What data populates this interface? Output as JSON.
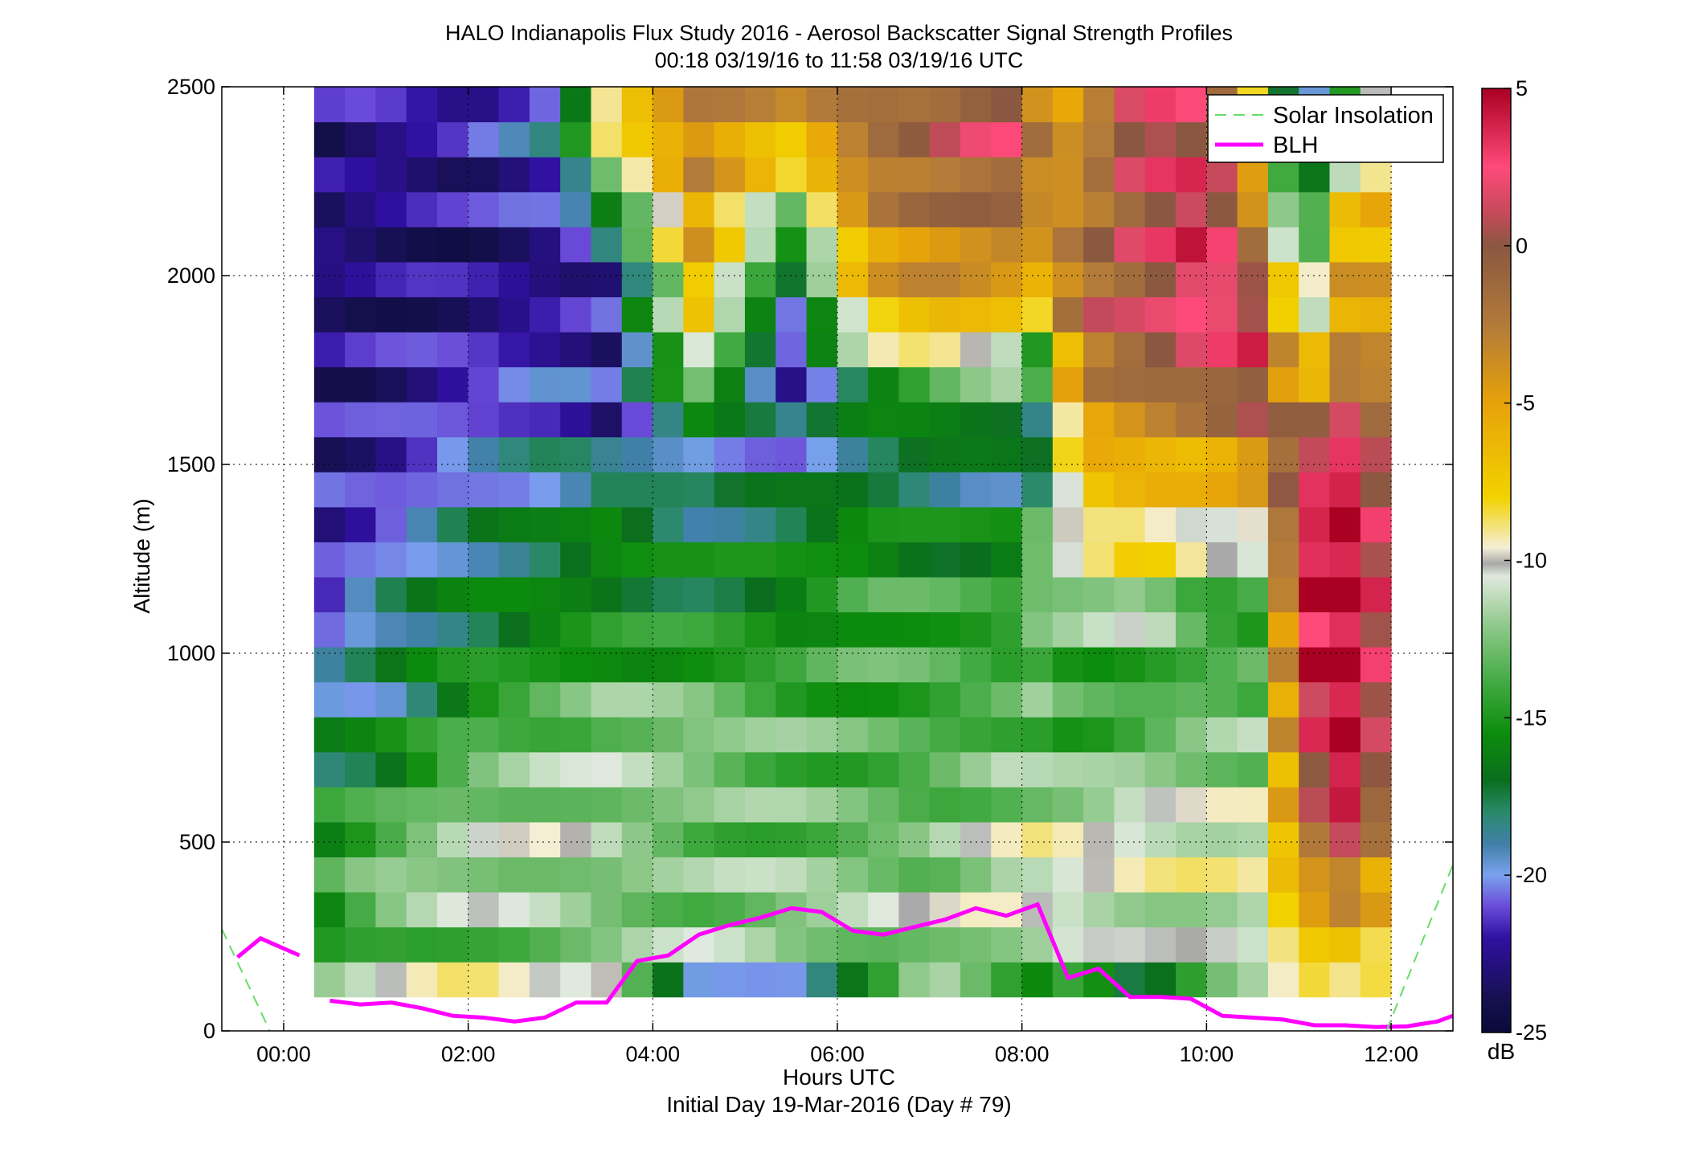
{
  "chart_data": {
    "type": "heatmap",
    "title": "HALO Indianapolis Flux Study 2016 - Aerosol Backscatter Signal Strength Profiles",
    "subtitle": "00:18 03/19/16 to 11:58 03/19/16  UTC",
    "xlabel": "Hours UTC",
    "xlabel2": "Initial Day 19-Mar-2016 (Day # 79)",
    "ylabel": "Altitude (m)",
    "xlim": [
      -0.67,
      12.67
    ],
    "ylim": [
      0,
      2500
    ],
    "grid": true,
    "x_ticks": [
      {
        "value": 0,
        "label": "00:00"
      },
      {
        "value": 2,
        "label": "02:00"
      },
      {
        "value": 4,
        "label": "04:00"
      },
      {
        "value": 6,
        "label": "06:00"
      },
      {
        "value": 8,
        "label": "08:00"
      },
      {
        "value": 10,
        "label": "10:00"
      },
      {
        "value": 12,
        "label": "12:00"
      }
    ],
    "y_ticks": [
      {
        "value": 0,
        "label": "0"
      },
      {
        "value": 500,
        "label": "500"
      },
      {
        "value": 1000,
        "label": "1000"
      },
      {
        "value": 1500,
        "label": "1500"
      },
      {
        "value": 2000,
        "label": "2000"
      },
      {
        "value": 2500,
        "label": "2500"
      }
    ],
    "heatmap": {
      "x_start": 0.33,
      "x_end": 12.0,
      "columns": 35,
      "y_start": 90,
      "y_end": 2500,
      "rows": 26,
      "note_values": "signal strength in dB, interpolated from the profile shape",
      "profiles": [
        {
          "t": 0.33,
          "pts": [
            [
              90,
              -9
            ],
            [
              200,
              -16
            ],
            [
              500,
              -15
            ],
            [
              700,
              -17
            ],
            [
              900,
              -19
            ],
            [
              1000,
              -20
            ],
            [
              1100,
              -22
            ],
            [
              1400,
              -22
            ],
            [
              1800,
              -23
            ],
            [
              2500,
              -23
            ]
          ]
        },
        {
          "t": 1.0,
          "pts": [
            [
              90,
              -10
            ],
            [
              200,
              -14
            ],
            [
              400,
              -12
            ],
            [
              700,
              -16
            ],
            [
              900,
              -19
            ],
            [
              1100,
              -18
            ],
            [
              1300,
              -21
            ],
            [
              1500,
              -22
            ],
            [
              2000,
              -23
            ],
            [
              2500,
              -22
            ]
          ]
        },
        {
          "t": 2.0,
          "pts": [
            [
              90,
              -8
            ],
            [
              200,
              -13
            ],
            [
              400,
              -11
            ],
            [
              700,
              -13
            ],
            [
              900,
              -15
            ],
            [
              1100,
              -17
            ],
            [
              1300,
              -18
            ],
            [
              1500,
              -20
            ],
            [
              2000,
              -23
            ],
            [
              2500,
              -22
            ]
          ]
        },
        {
          "t": 3.0,
          "pts": [
            [
              90,
              -9
            ],
            [
              200,
              -13
            ],
            [
              500,
              -11
            ],
            [
              800,
              -13
            ],
            [
              1100,
              -16
            ],
            [
              1300,
              -17
            ],
            [
              1500,
              -19
            ],
            [
              2000,
              -23
            ],
            [
              2500,
              -18
            ]
          ]
        },
        {
          "t": 3.5,
          "pts": [
            [
              90,
              -6
            ],
            [
              200,
              -13
            ],
            [
              500,
              -12
            ],
            [
              800,
              -12
            ],
            [
              1100,
              -16
            ],
            [
              1400,
              -16
            ],
            [
              1600,
              -22
            ],
            [
              2000,
              -22
            ],
            [
              2400,
              -8
            ]
          ]
        },
        {
          "t": 4.5,
          "pts": [
            [
              90,
              -23
            ],
            [
              200,
              -12
            ],
            [
              500,
              -13
            ],
            [
              800,
              -12
            ],
            [
              1100,
              -16
            ],
            [
              1300,
              -17
            ],
            [
              1500,
              -20
            ],
            [
              1800,
              -10
            ],
            [
              2000,
              -6
            ],
            [
              2400,
              -3
            ]
          ]
        },
        {
          "t": 5.5,
          "pts": [
            [
              90,
              -24
            ],
            [
              250,
              -11
            ],
            [
              500,
              -13
            ],
            [
              800,
              -13
            ],
            [
              1100,
              -16
            ],
            [
              1300,
              -16
            ],
            [
              1500,
              -19
            ],
            [
              1800,
              -22
            ],
            [
              2100,
              -15
            ],
            [
              2400,
              -5
            ]
          ]
        },
        {
          "t": 6.3,
          "pts": [
            [
              90,
              -20
            ],
            [
              250,
              -11
            ],
            [
              500,
              -13
            ],
            [
              800,
              -14
            ],
            [
              1100,
              -14
            ],
            [
              1300,
              -15
            ],
            [
              1500,
              -18
            ],
            [
              1700,
              -16
            ],
            [
              1900,
              -7
            ],
            [
              2300,
              -2
            ]
          ]
        },
        {
          "t": 7.0,
          "pts": [
            [
              90,
              -13
            ],
            [
              250,
              -11
            ],
            [
              500,
              -13
            ],
            [
              800,
              -14
            ],
            [
              1100,
              -14
            ],
            [
              1300,
              -16
            ],
            [
              1500,
              -18
            ],
            [
              1700,
              -14
            ],
            [
              1900,
              -5
            ],
            [
              2300,
              -1
            ]
          ]
        },
        {
          "t": 7.8,
          "pts": [
            [
              90,
              -16
            ],
            [
              250,
              -11
            ],
            [
              400,
              -10
            ],
            [
              600,
              -12
            ],
            [
              900,
              -14
            ],
            [
              1200,
              -15
            ],
            [
              1500,
              -19
            ],
            [
              1800,
              -10
            ],
            [
              2000,
              -4
            ],
            [
              2400,
              2
            ]
          ]
        },
        {
          "t": 8.2,
          "pts": [
            [
              90,
              -17
            ],
            [
              250,
              -11
            ],
            [
              500,
              -10
            ],
            [
              700,
              -13
            ],
            [
              1000,
              -13
            ],
            [
              1300,
              -12
            ],
            [
              1500,
              -19
            ],
            [
              1800,
              -14
            ],
            [
              2000,
              -5
            ],
            [
              2300,
              -3
            ]
          ]
        },
        {
          "t": 8.6,
          "pts": [
            [
              90,
              -13
            ],
            [
              250,
              -11
            ],
            [
              500,
              -10
            ],
            [
              700,
              -13
            ],
            [
              900,
              -15
            ],
            [
              1200,
              -11
            ],
            [
              1400,
              -8
            ],
            [
              1600,
              -5
            ],
            [
              1900,
              -1
            ],
            [
              2400,
              -5
            ]
          ]
        },
        {
          "t": 9.3,
          "pts": [
            [
              90,
              -19
            ],
            [
              250,
              -11
            ],
            [
              500,
              -10
            ],
            [
              700,
              -12
            ],
            [
              900,
              -15
            ],
            [
              1100,
              -11
            ],
            [
              1300,
              -8
            ],
            [
              1500,
              -6
            ],
            [
              1800,
              0
            ],
            [
              2200,
              1
            ],
            [
              2500,
              3
            ]
          ]
        },
        {
          "t": 10.0,
          "pts": [
            [
              90,
              -13
            ],
            [
              250,
              -11
            ],
            [
              500,
              -10
            ],
            [
              700,
              -12
            ],
            [
              900,
              -13
            ],
            [
              1100,
              -15
            ],
            [
              1300,
              -10
            ],
            [
              1500,
              -6
            ],
            [
              1800,
              2
            ],
            [
              2100,
              4
            ],
            [
              2500,
              0
            ]
          ]
        },
        {
          "t": 10.6,
          "pts": [
            [
              90,
              -12
            ],
            [
              250,
              -11
            ],
            [
              500,
              -10
            ],
            [
              700,
              -12
            ],
            [
              900,
              -13
            ],
            [
              1100,
              -15
            ],
            [
              1300,
              -10
            ],
            [
              1500,
              -3
            ],
            [
              1800,
              3
            ],
            [
              2100,
              -3
            ],
            [
              2500,
              -13
            ]
          ]
        },
        {
          "t": 11.0,
          "pts": [
            [
              90,
              -11
            ],
            [
              200,
              -7
            ],
            [
              400,
              -5
            ],
            [
              600,
              -2
            ],
            [
              800,
              1
            ],
            [
              1000,
              3
            ],
            [
              1200,
              4
            ],
            [
              1500,
              2
            ],
            [
              1800,
              -10
            ],
            [
              2100,
              -16
            ],
            [
              2500,
              -24
            ]
          ]
        },
        {
          "t": 11.5,
          "pts": [
            [
              90,
              -14
            ],
            [
              200,
              -6
            ],
            [
              400,
              -3
            ],
            [
              600,
              4
            ],
            [
              800,
              5
            ],
            [
              1000,
              5
            ],
            [
              1200,
              5
            ],
            [
              1500,
              4
            ],
            [
              1800,
              -4
            ],
            [
              2100,
              -6
            ],
            [
              2500,
              -16
            ]
          ]
        },
        {
          "t": 12.0,
          "pts": [
            [
              90,
              -11
            ],
            [
              200,
              -8
            ],
            [
              400,
              -6
            ],
            [
              600,
              -3
            ],
            [
              800,
              -1
            ],
            [
              1000,
              0
            ],
            [
              1200,
              1
            ],
            [
              1500,
              -1
            ],
            [
              1800,
              -4
            ],
            [
              2100,
              -6
            ],
            [
              2500,
              -7
            ]
          ]
        }
      ]
    },
    "series": [
      {
        "name": "BLH",
        "color": "#ff00ff",
        "x": [
          -0.5,
          -0.25,
          0.17,
          0.5,
          0.83,
          1.17,
          1.5,
          1.83,
          2.17,
          2.5,
          2.83,
          3.17,
          3.5,
          3.83,
          4.17,
          4.5,
          4.83,
          5.17,
          5.5,
          5.83,
          6.17,
          6.5,
          6.83,
          7.17,
          7.5,
          7.83,
          8.17,
          8.5,
          8.83,
          9.17,
          9.5,
          9.83,
          10.17,
          10.5,
          10.83,
          11.17,
          11.5,
          11.83,
          12.17,
          12.5,
          12.67
        ],
        "y": [
          195,
          245,
          200,
          80,
          70,
          75,
          60,
          40,
          35,
          25,
          35,
          75,
          75,
          185,
          200,
          255,
          280,
          300,
          325,
          315,
          265,
          255,
          275,
          295,
          325,
          305,
          335,
          140,
          165,
          90,
          90,
          85,
          40,
          35,
          30,
          15,
          15,
          10,
          12,
          25,
          40
        ]
      },
      {
        "name": "Solar Insolation",
        "color": "#66dd66",
        "dashed": true,
        "segments": [
          {
            "x": [
              -0.67,
              -0.15
            ],
            "y": [
              270,
              0
            ]
          },
          {
            "x": [
              11.95,
              12.67
            ],
            "y": [
              0,
              440
            ]
          }
        ]
      }
    ],
    "legend": {
      "position": "top-right",
      "entries": [
        "Solar Insolation",
        "BLH"
      ]
    },
    "colorbar": {
      "label": "dB",
      "range": [
        -25,
        5
      ],
      "ticks": [
        {
          "value": 5,
          "label": "5"
        },
        {
          "value": 0,
          "label": "0"
        },
        {
          "value": -5,
          "label": "-5"
        },
        {
          "value": -10,
          "label": "-10"
        },
        {
          "value": -15,
          "label": "-15"
        },
        {
          "value": -20,
          "label": "-20"
        },
        {
          "value": -25,
          "label": "-25"
        }
      ],
      "stops": [
        {
          "v": -25,
          "c": "#0a0a3a"
        },
        {
          "v": -24,
          "c": "#15104e"
        },
        {
          "v": -22,
          "c": "#3010a0"
        },
        {
          "v": -21,
          "c": "#6a4ad8"
        },
        {
          "v": -20,
          "c": "#7aa2ee"
        },
        {
          "v": -19,
          "c": "#4080a8"
        },
        {
          "v": -18,
          "c": "#2a8a6a"
        },
        {
          "v": -17,
          "c": "#0b6e1e"
        },
        {
          "v": -15.5,
          "c": "#0c8c0c"
        },
        {
          "v": -14,
          "c": "#3ea83e"
        },
        {
          "v": -12,
          "c": "#92ca8e"
        },
        {
          "v": -10.5,
          "c": "#dfe9dd"
        },
        {
          "v": -10.1,
          "c": "#a8a8a8"
        },
        {
          "v": -9.6,
          "c": "#f4eed6"
        },
        {
          "v": -8,
          "c": "#f2d200"
        },
        {
          "v": -5,
          "c": "#e6a20a"
        },
        {
          "v": -2.5,
          "c": "#b27a3a"
        },
        {
          "v": 0,
          "c": "#8a5840"
        },
        {
          "v": 1,
          "c": "#c44a5a"
        },
        {
          "v": 2.5,
          "c": "#ff4a7a"
        },
        {
          "v": 5,
          "c": "#aa0022"
        }
      ]
    }
  }
}
